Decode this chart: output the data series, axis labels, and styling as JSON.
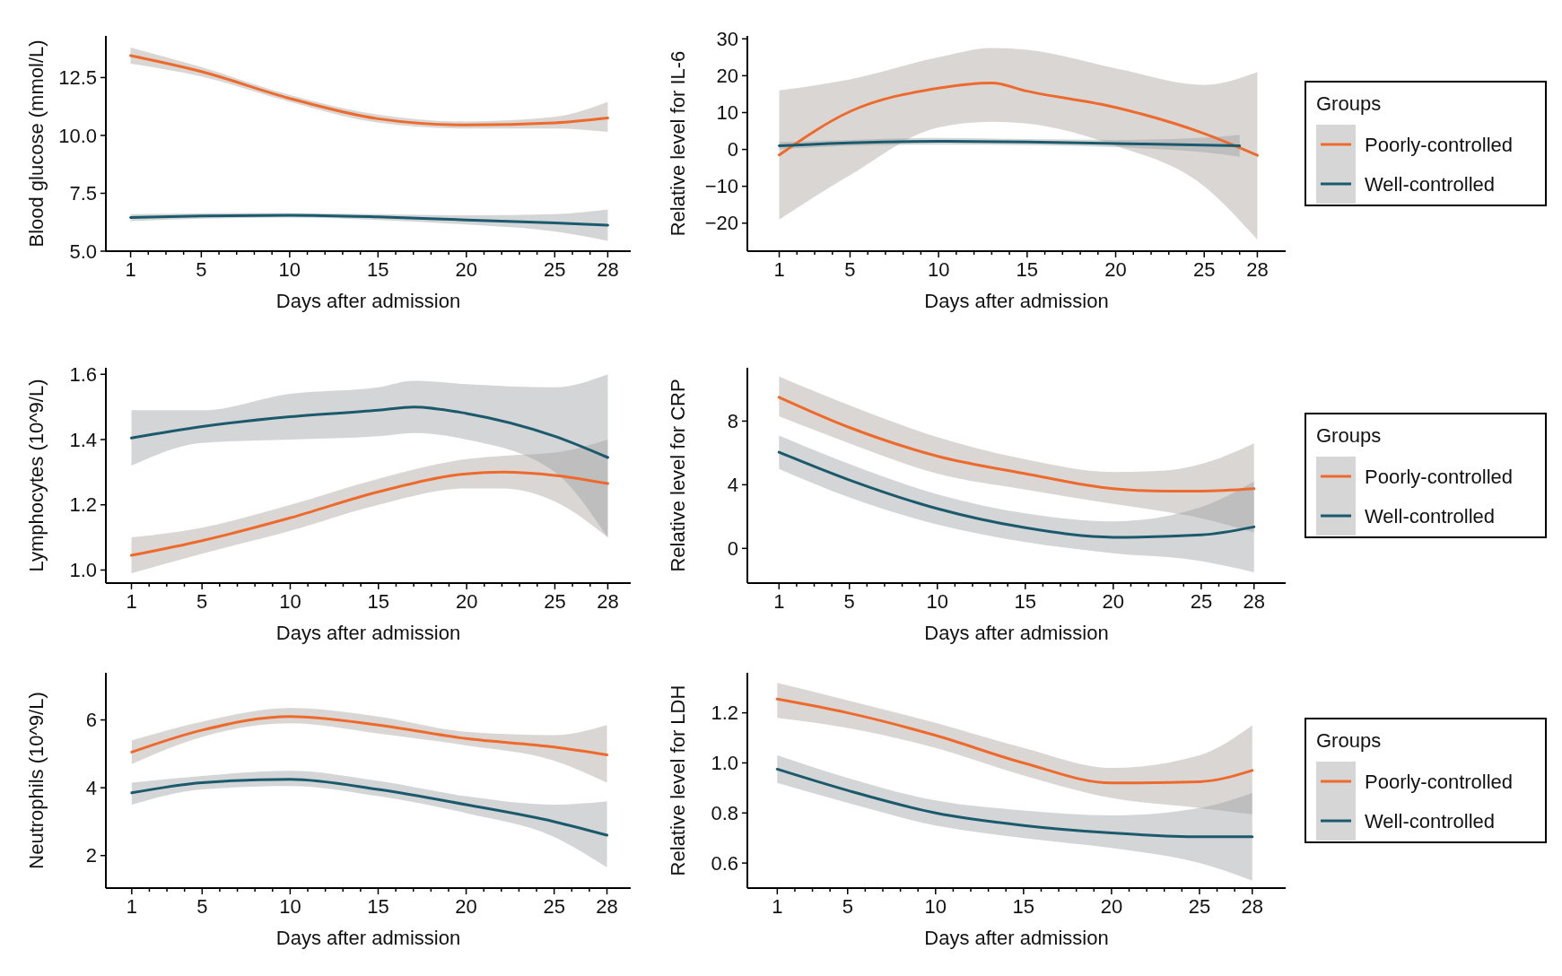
{
  "chart_data": [
    {
      "type": "line",
      "xlabel": "Days after admission",
      "ylabel": "Blood glucose (mmol/L)",
      "xlim": [
        -0.4,
        29.3
      ],
      "ylim": [
        5,
        14.3
      ],
      "xticks": [
        1,
        {
          "value": 2,
          "label": null
        },
        {
          "value": 3,
          "label": null
        },
        {
          "value": 4,
          "label": null
        },
        5,
        {
          "value": 6,
          "label": null
        },
        {
          "value": 7,
          "label": null
        },
        {
          "value": 8,
          "label": null
        },
        {
          "value": 9,
          "label": null
        },
        10,
        {
          "value": 11,
          "label": null
        },
        {
          "value": 12,
          "label": null
        },
        {
          "value": 13,
          "label": null
        },
        {
          "value": 14,
          "label": null
        },
        15,
        {
          "value": 16,
          "label": null
        },
        {
          "value": 17,
          "label": null
        },
        {
          "value": 18,
          "label": null
        },
        {
          "value": 19,
          "label": null
        },
        20,
        {
          "value": 21,
          "label": null
        },
        {
          "value": 22,
          "label": null
        },
        {
          "value": 23,
          "label": null
        },
        {
          "value": 24,
          "label": null
        },
        25,
        {
          "value": 26,
          "label": null
        },
        {
          "value": 27,
          "label": null
        },
        28
      ],
      "yticks": [
        {
          "value": 5,
          "label": "5.0"
        },
        {
          "value": 7.5,
          "label": "7.5"
        },
        {
          "value": 10,
          "label": "10.0"
        },
        {
          "value": 12.5,
          "label": "12.5"
        }
      ],
      "series": [
        {
          "color": "#ee6a2c",
          "x": [
            1,
            5,
            10,
            15,
            20,
            25,
            28
          ],
          "values": [
            13.45,
            12.76,
            11.6,
            10.72,
            10.45,
            10.54,
            10.75
          ],
          "lower": [
            13.1,
            12.55,
            11.45,
            10.55,
            10.3,
            10.3,
            10.15
          ],
          "upper": [
            13.8,
            12.95,
            11.75,
            10.9,
            10.6,
            10.8,
            11.45
          ]
        },
        {
          "color": "#1b5a6c",
          "x": [
            1,
            5,
            10,
            15,
            20,
            25,
            28
          ],
          "values": [
            6.45,
            6.52,
            6.55,
            6.48,
            6.35,
            6.22,
            6.12
          ],
          "lower": [
            6.3,
            6.4,
            6.45,
            6.35,
            6.15,
            5.85,
            5.45
          ],
          "upper": [
            6.6,
            6.64,
            6.65,
            6.6,
            6.55,
            6.6,
            6.8
          ]
        }
      ]
    },
    {
      "type": "line",
      "xlabel": "Days after admission",
      "ylabel": "Relative level for IL-6",
      "xlim": [
        -0.8,
        29.6
      ],
      "ylim": [
        -27.6,
        30.8
      ],
      "legend": "right",
      "legend_title": "Groups",
      "xticks": [
        1,
        {
          "value": 2,
          "label": null
        },
        {
          "value": 3,
          "label": null
        },
        {
          "value": 4,
          "label": null
        },
        5,
        {
          "value": 6,
          "label": null
        },
        {
          "value": 7,
          "label": null
        },
        {
          "value": 8,
          "label": null
        },
        {
          "value": 9,
          "label": null
        },
        10,
        {
          "value": 11,
          "label": null
        },
        {
          "value": 12,
          "label": null
        },
        {
          "value": 13,
          "label": null
        },
        {
          "value": 14,
          "label": null
        },
        15,
        {
          "value": 16,
          "label": null
        },
        {
          "value": 17,
          "label": null
        },
        {
          "value": 18,
          "label": null
        },
        {
          "value": 19,
          "label": null
        },
        20,
        {
          "value": 21,
          "label": null
        },
        {
          "value": 22,
          "label": null
        },
        {
          "value": 23,
          "label": null
        },
        {
          "value": 24,
          "label": null
        },
        25,
        {
          "value": 26,
          "label": null
        },
        {
          "value": 27,
          "label": null
        },
        28
      ],
      "yticks": [
        {
          "value": -20,
          "label": "−20"
        },
        {
          "value": -10,
          "label": "−10"
        },
        0,
        10,
        20,
        30
      ],
      "series": [
        {
          "name": "Poorly-controlled",
          "color": "#ee6a2c",
          "x": [
            1,
            5,
            10,
            13,
            15,
            20,
            25,
            28
          ],
          "values": [
            -1.5,
            10.3,
            16.6,
            18,
            15.8,
            11.4,
            4.3,
            -1.6
          ],
          "lower": [
            -19,
            -7,
            6,
            7.5,
            7,
            1,
            -10,
            -24.5
          ],
          "upper": [
            16,
            19,
            25,
            27.5,
            27,
            22,
            17.5,
            21
          ]
        },
        {
          "name": "Well-controlled",
          "color": "#1b5a6c",
          "x": [
            1,
            5,
            10,
            15,
            20,
            25,
            27
          ],
          "values": [
            1,
            1.8,
            2.2,
            2,
            1.6,
            1.2,
            1
          ],
          "lower": [
            0,
            1,
            1.3,
            1.2,
            0.6,
            -0.8,
            -2
          ],
          "upper": [
            2,
            2.6,
            3.1,
            2.8,
            2.6,
            3.2,
            4
          ]
        }
      ]
    },
    {
      "type": "line",
      "xlabel": "Days after admission",
      "ylabel": "Lymphocytes (10^9/L)",
      "xlim": [
        -0.45,
        29.3
      ],
      "ylim": [
        0.96,
        1.62
      ],
      "xticks": [
        1,
        {
          "value": 2,
          "label": null
        },
        {
          "value": 3,
          "label": null
        },
        {
          "value": 4,
          "label": null
        },
        5,
        {
          "value": 6,
          "label": null
        },
        {
          "value": 7,
          "label": null
        },
        {
          "value": 8,
          "label": null
        },
        {
          "value": 9,
          "label": null
        },
        10,
        {
          "value": 11,
          "label": null
        },
        {
          "value": 12,
          "label": null
        },
        {
          "value": 13,
          "label": null
        },
        {
          "value": 14,
          "label": null
        },
        15,
        {
          "value": 16,
          "label": null
        },
        {
          "value": 17,
          "label": null
        },
        {
          "value": 18,
          "label": null
        },
        {
          "value": 19,
          "label": null
        },
        20,
        {
          "value": 21,
          "label": null
        },
        {
          "value": 22,
          "label": null
        },
        {
          "value": 23,
          "label": null
        },
        {
          "value": 24,
          "label": null
        },
        25,
        {
          "value": 26,
          "label": null
        },
        {
          "value": 27,
          "label": null
        },
        28
      ],
      "yticks": [
        {
          "value": 1,
          "label": "1.0"
        },
        {
          "value": 1.2,
          "label": "1.2"
        },
        {
          "value": 1.4,
          "label": "1.4"
        },
        {
          "value": 1.6,
          "label": "1.6"
        }
      ],
      "series": [
        {
          "color": "#ee6a2c",
          "x": [
            1,
            5,
            10,
            15,
            20,
            22,
            25,
            28
          ],
          "values": [
            1.045,
            1.09,
            1.16,
            1.24,
            1.295,
            1.3,
            1.29,
            1.265
          ],
          "lower": [
            0.99,
            1.05,
            1.12,
            1.2,
            1.25,
            1.25,
            1.21,
            1.1
          ],
          "upper": [
            1.1,
            1.13,
            1.2,
            1.28,
            1.34,
            1.35,
            1.36,
            1.4
          ]
        },
        {
          "color": "#1b5a6c",
          "x": [
            1,
            5,
            10,
            15,
            17,
            20,
            25,
            28
          ],
          "values": [
            1.405,
            1.44,
            1.47,
            1.49,
            1.5,
            1.48,
            1.41,
            1.345
          ],
          "lower": [
            1.32,
            1.39,
            1.4,
            1.41,
            1.42,
            1.4,
            1.3,
            1.1
          ],
          "upper": [
            1.49,
            1.49,
            1.54,
            1.56,
            1.58,
            1.57,
            1.56,
            1.6
          ]
        }
      ]
    },
    {
      "type": "line",
      "xlabel": "Days after admission",
      "ylabel": "Relative level for CRP",
      "xlim": [
        -0.8,
        29.8
      ],
      "ylim": [
        -2.18,
        11.35
      ],
      "legend": "right",
      "legend_title": "Groups",
      "xticks": [
        1,
        {
          "value": 2,
          "label": null
        },
        {
          "value": 3,
          "label": null
        },
        {
          "value": 4,
          "label": null
        },
        5,
        {
          "value": 6,
          "label": null
        },
        {
          "value": 7,
          "label": null
        },
        {
          "value": 8,
          "label": null
        },
        {
          "value": 9,
          "label": null
        },
        10,
        {
          "value": 11,
          "label": null
        },
        {
          "value": 12,
          "label": null
        },
        {
          "value": 13,
          "label": null
        },
        {
          "value": 14,
          "label": null
        },
        15,
        {
          "value": 16,
          "label": null
        },
        {
          "value": 17,
          "label": null
        },
        {
          "value": 18,
          "label": null
        },
        {
          "value": 19,
          "label": null
        },
        20,
        {
          "value": 21,
          "label": null
        },
        {
          "value": 22,
          "label": null
        },
        {
          "value": 23,
          "label": null
        },
        {
          "value": 24,
          "label": null
        },
        25,
        {
          "value": 26,
          "label": null
        },
        {
          "value": 27,
          "label": null
        },
        28
      ],
      "yticks": [
        0,
        4,
        8
      ],
      "series": [
        {
          "name": "Poorly-controlled",
          "color": "#ee6a2c",
          "x": [
            1,
            5,
            10,
            15,
            20,
            23,
            25,
            28
          ],
          "values": [
            9.5,
            7.6,
            5.8,
            4.7,
            3.75,
            3.6,
            3.6,
            3.75
          ],
          "lower": [
            8.3,
            6.6,
            4.7,
            3.7,
            2.8,
            2.3,
            1.9,
            1
          ],
          "upper": [
            10.8,
            9,
            7,
            5.6,
            4.8,
            4.9,
            5.3,
            6.6
          ]
        },
        {
          "name": "Well-controlled",
          "color": "#1b5a6c",
          "x": [
            1,
            5,
            10,
            15,
            20,
            25,
            28
          ],
          "values": [
            6.05,
            4.3,
            2.5,
            1.3,
            0.7,
            0.85,
            1.35
          ],
          "lower": [
            5,
            3.2,
            1.5,
            0.4,
            -0.3,
            -0.8,
            -1.5
          ],
          "upper": [
            7.1,
            5.3,
            3.4,
            2.2,
            1.7,
            2.6,
            4.2
          ]
        }
      ]
    },
    {
      "type": "line",
      "xlabel": "Days after admission",
      "ylabel": "Neutrophils (10^9/L)",
      "xlim": [
        -0.47,
        29.35
      ],
      "ylim": [
        1.04,
        7.39
      ],
      "xticks": [
        1,
        {
          "value": 2,
          "label": null
        },
        {
          "value": 3,
          "label": null
        },
        {
          "value": 4,
          "label": null
        },
        5,
        {
          "value": 6,
          "label": null
        },
        {
          "value": 7,
          "label": null
        },
        {
          "value": 8,
          "label": null
        },
        {
          "value": 9,
          "label": null
        },
        10,
        {
          "value": 11,
          "label": null
        },
        {
          "value": 12,
          "label": null
        },
        {
          "value": 13,
          "label": null
        },
        {
          "value": 14,
          "label": null
        },
        15,
        {
          "value": 16,
          "label": null
        },
        {
          "value": 17,
          "label": null
        },
        {
          "value": 18,
          "label": null
        },
        {
          "value": 19,
          "label": null
        },
        20,
        {
          "value": 21,
          "label": null
        },
        {
          "value": 22,
          "label": null
        },
        {
          "value": 23,
          "label": null
        },
        {
          "value": 24,
          "label": null
        },
        25,
        {
          "value": 26,
          "label": null
        },
        {
          "value": 27,
          "label": null
        },
        28
      ],
      "yticks": [
        2,
        4,
        6
      ],
      "series": [
        {
          "color": "#ee6a2c",
          "x": [
            1,
            5,
            10,
            15,
            20,
            25,
            28
          ],
          "values": [
            5.05,
            5.7,
            6.1,
            5.85,
            5.45,
            5.2,
            4.97
          ],
          "lower": [
            4.7,
            5.5,
            5.9,
            5.6,
            5.25,
            4.8,
            4.15
          ],
          "upper": [
            5.4,
            5.95,
            6.35,
            6.1,
            5.65,
            5.55,
            5.85
          ]
        },
        {
          "color": "#1b5a6c",
          "x": [
            1,
            5,
            10,
            15,
            20,
            25,
            28
          ],
          "values": [
            3.85,
            4.15,
            4.25,
            3.95,
            3.5,
            3,
            2.6
          ],
          "lower": [
            3.5,
            3.95,
            4.05,
            3.75,
            3.25,
            2.55,
            1.65
          ],
          "upper": [
            4.15,
            4.35,
            4.5,
            4.2,
            3.75,
            3.5,
            3.6
          ]
        }
      ]
    },
    {
      "type": "line",
      "xlabel": "Days after admission",
      "ylabel": "Relative level for LDH",
      "xlim": [
        -0.7,
        29.9
      ],
      "ylim": [
        0.5,
        1.36
      ],
      "legend": "right",
      "legend_title": "Groups",
      "xticks": [
        1,
        {
          "value": 2,
          "label": null
        },
        {
          "value": 3,
          "label": null
        },
        {
          "value": 4,
          "label": null
        },
        5,
        {
          "value": 6,
          "label": null
        },
        {
          "value": 7,
          "label": null
        },
        {
          "value": 8,
          "label": null
        },
        {
          "value": 9,
          "label": null
        },
        10,
        {
          "value": 11,
          "label": null
        },
        {
          "value": 12,
          "label": null
        },
        {
          "value": 13,
          "label": null
        },
        {
          "value": 14,
          "label": null
        },
        15,
        {
          "value": 16,
          "label": null
        },
        {
          "value": 17,
          "label": null
        },
        {
          "value": 18,
          "label": null
        },
        {
          "value": 19,
          "label": null
        },
        20,
        {
          "value": 21,
          "label": null
        },
        {
          "value": 22,
          "label": null
        },
        {
          "value": 23,
          "label": null
        },
        {
          "value": 24,
          "label": null
        },
        25,
        {
          "value": 26,
          "label": null
        },
        {
          "value": 27,
          "label": null
        },
        28
      ],
      "yticks": [
        {
          "value": 0.6,
          "label": "0.6"
        },
        {
          "value": 0.8,
          "label": "0.8"
        },
        {
          "value": 1,
          "label": "1.0"
        },
        {
          "value": 1.2,
          "label": "1.2"
        }
      ],
      "series": [
        {
          "name": "Poorly-controlled",
          "color": "#ee6a2c",
          "x": [
            1,
            5,
            10,
            15,
            20,
            25,
            28
          ],
          "values": [
            1.255,
            1.2,
            1.11,
            1,
            0.92,
            0.925,
            0.97
          ],
          "lower": [
            1.18,
            1.14,
            1.06,
            0.95,
            0.86,
            0.82,
            0.795
          ],
          "upper": [
            1.32,
            1.25,
            1.16,
            1.06,
            0.98,
            1.03,
            1.15
          ]
        },
        {
          "name": "Well-controlled",
          "color": "#1b5a6c",
          "x": [
            1,
            5,
            10,
            15,
            20,
            25,
            28
          ],
          "values": [
            0.975,
            0.89,
            0.8,
            0.75,
            0.72,
            0.705,
            0.705
          ],
          "lower": [
            0.92,
            0.84,
            0.75,
            0.7,
            0.66,
            0.6,
            0.53
          ],
          "upper": [
            1.03,
            0.94,
            0.85,
            0.81,
            0.79,
            0.82,
            0.88
          ]
        }
      ]
    }
  ]
}
